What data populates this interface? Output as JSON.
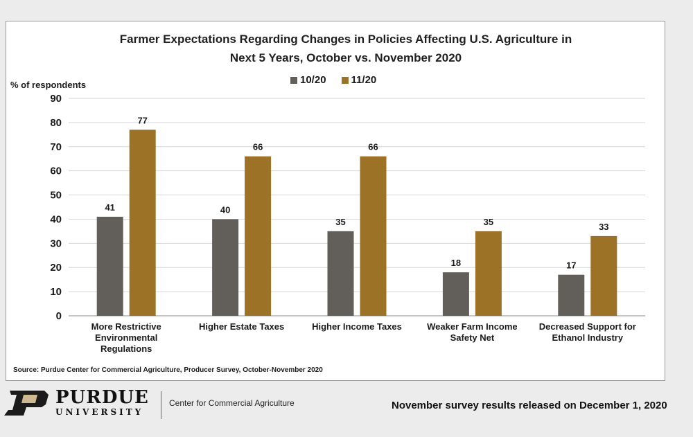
{
  "chart_data": {
    "type": "bar",
    "title": "Farmer Expectations Regarding Changes in Policies Affecting U.S. Agriculture in Next 5 Years, October vs. November 2020",
    "title_lines": [
      "Farmer Expectations Regarding Changes in Policies Affecting U.S. Agriculture in",
      "Next 5 Years, October vs. November 2020"
    ],
    "ylabel": "% of respondents",
    "xlabel": "",
    "ylim": [
      0,
      90
    ],
    "yticks": [
      0,
      10,
      20,
      30,
      40,
      50,
      60,
      70,
      80,
      90
    ],
    "grid": true,
    "legend_position": "top-center",
    "categories": [
      "More Restrictive Environmental Regulations",
      "Higher Estate Taxes",
      "Higher Income Taxes",
      "Weaker Farm Income Safety Net",
      "Decreased Support for Ethanol Industry"
    ],
    "category_lines": [
      [
        "More Restrictive",
        "Environmental",
        "Regulations"
      ],
      [
        "Higher Estate Taxes"
      ],
      [
        "Higher Income Taxes"
      ],
      [
        "Weaker Farm Income",
        "Safety Net"
      ],
      [
        "Decreased Support for",
        "Ethanol Industry"
      ]
    ],
    "series": [
      {
        "name": "10/20",
        "color": "#625f5b",
        "values": [
          41,
          40,
          35,
          18,
          17
        ]
      },
      {
        "name": "11/20",
        "color": "#9c7326",
        "values": [
          77,
          66,
          66,
          35,
          33
        ]
      }
    ],
    "source": "Source: Purdue Center for Commercial Agriculture, Producer Survey, October-November 2020"
  },
  "footer": {
    "logo_name": "PURDUE",
    "logo_sub": "UNIVERSITY",
    "center_name": "Center for Commercial Agriculture",
    "release_note": "November survey results released on December  1, 2020"
  }
}
